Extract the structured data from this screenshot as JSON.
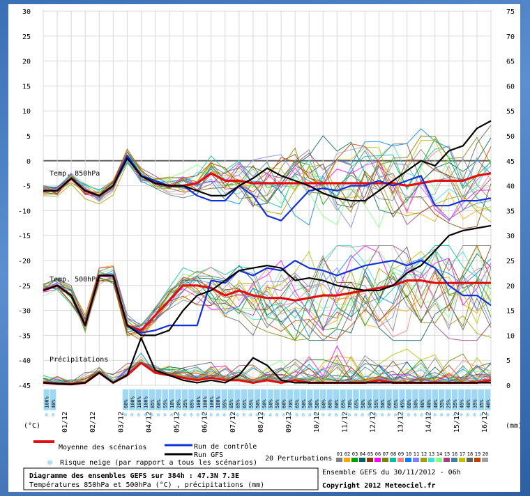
{
  "chart_data": {
    "type": "line",
    "title": "Diagramme des ensembles GEFS sur 384h : 47.3N 7.3E",
    "subtitle": "Températures 850hPa et 500hPa (°C) , précipitations (mm)",
    "run_label": "Ensemble GEFS du 30/11/2012 - 06h",
    "copyright": "Copyright 2012 Meteociel.fr",
    "ylabel_left": "(°C)",
    "ylabel_right": "(mm)",
    "ylim_left": [
      -45,
      30
    ],
    "ylim_right": [
      0,
      75
    ],
    "y_ticks_left": [
      30,
      25,
      20,
      15,
      10,
      5,
      0,
      -5,
      -10,
      -15,
      -20,
      -25,
      -30,
      -35,
      -40,
      -45
    ],
    "y_ticks_right": [
      75,
      70,
      65,
      60,
      55,
      50,
      45,
      40,
      35,
      30,
      25,
      20,
      15,
      10,
      5,
      0
    ],
    "x_range_hours": [
      0,
      384
    ],
    "x_tick_labels": [
      "01/12",
      "02/12",
      "03/12",
      "04/12",
      "05/12",
      "06/12",
      "07/12",
      "08/12",
      "09/12",
      "10/12",
      "11/12",
      "12/12",
      "13/12",
      "14/12",
      "15/12",
      "16/12"
    ],
    "x_tick_hours": [
      18,
      42,
      66,
      90,
      114,
      138,
      162,
      186,
      210,
      234,
      258,
      282,
      306,
      330,
      354,
      378
    ],
    "grid": true,
    "panel_labels": [
      "Temp. 850hPa",
      "Temp. 500hPa",
      "Précipitations"
    ],
    "snow_risk": [
      "100%",
      "40%",
      "",
      "",
      "",
      "",
      "",
      "",
      "",
      "",
      "",
      "",
      "60%",
      "100%",
      "100%",
      "100%",
      "85%",
      "60%",
      "55%",
      "10%",
      "20%",
      "35%",
      "85%",
      "100%",
      "100%",
      "100%",
      "100%",
      "95%",
      "85%",
      "85%",
      "65%",
      "55%",
      "50%",
      "50%",
      "50%",
      "50%",
      "60%",
      "70%",
      "65%",
      "50%",
      "50%",
      "50%",
      "60%",
      "60%",
      "60%",
      "65%",
      "70%",
      "65%",
      "50%",
      "50%",
      "55%",
      "50%",
      "60%",
      "65%",
      "45%",
      "60%",
      "50%",
      "40%",
      "40%",
      "40%",
      "35%",
      "25%",
      "35%",
      "45%",
      "40%",
      "35%",
      "35%",
      "40%"
    ],
    "legend": {
      "mean": "Moyenne des scénarios",
      "control": "Run de contrôle",
      "gfs": "Run GFS",
      "snow": "Risque neige (par rapport a tous les scénarios)",
      "perturbations_label": "20 Perturbations",
      "perturbations": [
        "01",
        "02",
        "03",
        "04",
        "05",
        "06",
        "07",
        "08",
        "09",
        "10",
        "11",
        "12",
        "13",
        "14",
        "15",
        "16",
        "17",
        "18",
        "19",
        "20"
      ]
    },
    "colors": {
      "mean": "#e01010",
      "control": "#1030d8",
      "gfs": "#000000",
      "snow": "#9fd8f4",
      "perturbations": [
        "#808080",
        "#ffa500",
        "#00a000",
        "#006060",
        "#804000",
        "#ff00ff",
        "#808000",
        "#00c0a0",
        "#ff8080",
        "#0080ff",
        "#8080ff",
        "#a0a000",
        "#40e0d0",
        "#80ff80",
        "#a04080",
        "#4080a0",
        "#c0c000",
        "#606060",
        "#c04000",
        "#a0a0a0"
      ]
    },
    "series": [
      {
        "name": "Temp. 850hPa - Moyenne des scénarios",
        "x": [
          0,
          12,
          24,
          36,
          48,
          60,
          72,
          84,
          96,
          108,
          120,
          132,
          144,
          156,
          168,
          180,
          192,
          204,
          216,
          228,
          240,
          252,
          264,
          276,
          288,
          300,
          312,
          324,
          336,
          348,
          360,
          372,
          384
        ],
        "values": [
          -6,
          -6,
          -3.5,
          -6,
          -7,
          -5,
          1,
          -3,
          -4.5,
          -5,
          -5,
          -4.5,
          -2.5,
          -4,
          -4,
          -4.5,
          -4.5,
          -4.5,
          -4.5,
          -4.5,
          -4.5,
          -4.5,
          -4.5,
          -4.5,
          -4.5,
          -4.5,
          -5,
          -4.5,
          -4,
          -4,
          -4,
          -3,
          -2.5
        ]
      },
      {
        "name": "Temp. 850hPa - Run de contrôle",
        "x": [
          0,
          12,
          24,
          36,
          48,
          60,
          72,
          84,
          96,
          108,
          120,
          132,
          144,
          156,
          168,
          180,
          192,
          204,
          216,
          228,
          240,
          252,
          264,
          276,
          288,
          300,
          312,
          324,
          336,
          348,
          360,
          372,
          384
        ],
        "values": [
          -6,
          -6,
          -3.5,
          -6,
          -7,
          -5,
          1,
          -3,
          -4,
          -5,
          -5,
          -7,
          -8,
          -8,
          -5,
          -7,
          -11,
          -12,
          -9,
          -6,
          -5.5,
          -6,
          -5,
          -5,
          -4,
          -5,
          -4,
          -3,
          -9,
          -9,
          -8,
          -8,
          -7.5
        ]
      },
      {
        "name": "Temp. 850hPa - Run GFS",
        "x": [
          0,
          12,
          24,
          36,
          48,
          60,
          72,
          84,
          96,
          108,
          120,
          132,
          144,
          156,
          168,
          180,
          192,
          204,
          216,
          228,
          240,
          252,
          264,
          276,
          288,
          300,
          312,
          324,
          336,
          348,
          360,
          372,
          384
        ],
        "values": [
          -6,
          -6,
          -3.5,
          -6,
          -7,
          -5,
          0.5,
          -3,
          -4.5,
          -5,
          -5,
          -6,
          -7,
          -7,
          -5,
          -3.5,
          -1.5,
          -3,
          -4,
          -5,
          -6.5,
          -7.5,
          -8,
          -8,
          -6,
          -4,
          -2,
          0,
          -1,
          2,
          3,
          6.5,
          8
        ]
      },
      {
        "name": "Temp. 500hPa - Moyenne des scénarios",
        "x": [
          0,
          12,
          24,
          36,
          48,
          60,
          72,
          84,
          96,
          108,
          120,
          132,
          144,
          156,
          168,
          180,
          192,
          204,
          216,
          228,
          240,
          252,
          264,
          276,
          288,
          300,
          312,
          324,
          336,
          348,
          360,
          372,
          384
        ],
        "values": [
          -26,
          -25,
          -27,
          -33,
          -23,
          -23,
          -33,
          -34,
          -31,
          -28,
          -25,
          -25,
          -25.5,
          -27,
          -26,
          -27,
          -27.5,
          -27.5,
          -28,
          -27.5,
          -27,
          -27,
          -26.5,
          -26,
          -25.5,
          -25,
          -24,
          -24,
          -24.5,
          -24.5,
          -24.5,
          -24.5,
          -24.5
        ]
      },
      {
        "name": "Temp. 500hPa - Run de contrôle",
        "x": [
          0,
          12,
          24,
          36,
          48,
          60,
          72,
          84,
          96,
          108,
          120,
          132,
          144,
          156,
          168,
          180,
          192,
          204,
          216,
          228,
          240,
          252,
          264,
          276,
          288,
          300,
          312,
          324,
          336,
          348,
          360,
          372,
          384
        ],
        "values": [
          -26,
          -25,
          -27,
          -33,
          -23,
          -23,
          -33,
          -34.5,
          -34,
          -33,
          -33,
          -33,
          -24,
          -24.5,
          -22,
          -23,
          -21.5,
          -22,
          -20,
          -21.5,
          -22,
          -23,
          -22,
          -21,
          -20.5,
          -20,
          -21,
          -20,
          -21.5,
          -25,
          -27,
          -27,
          -29
        ]
      },
      {
        "name": "Temp. 500hPa - Run GFS",
        "x": [
          0,
          12,
          24,
          36,
          48,
          60,
          72,
          84,
          96,
          108,
          120,
          132,
          144,
          156,
          168,
          180,
          192,
          204,
          216,
          228,
          240,
          252,
          264,
          276,
          288,
          300,
          312,
          324,
          336,
          348,
          360,
          372,
          384
        ],
        "values": [
          -26,
          -25,
          -27,
          -33,
          -23,
          -23,
          -33,
          -35,
          -35,
          -34,
          -30,
          -27,
          -26,
          -24,
          -22,
          -21.5,
          -21,
          -21.5,
          -24,
          -23.5,
          -24,
          -25,
          -25.5,
          -26,
          -26,
          -25,
          -22.5,
          -21,
          -18,
          -15,
          -14,
          -13.5,
          -13
        ]
      },
      {
        "name": "Précipitations - Moyenne des scénarios",
        "x": [
          0,
          12,
          24,
          36,
          48,
          60,
          72,
          84,
          96,
          108,
          120,
          132,
          144,
          156,
          168,
          180,
          192,
          204,
          216,
          228,
          240,
          252,
          264,
          276,
          288,
          300,
          312,
          324,
          336,
          348,
          360,
          372,
          384
        ],
        "values": [
          0.5,
          0.3,
          0.2,
          0.5,
          2.5,
          0.5,
          2,
          4.5,
          2.5,
          2,
          1.5,
          1,
          1.5,
          1,
          1,
          0.5,
          1,
          0.5,
          1,
          0.5,
          0.5,
          0.5,
          0.5,
          0.5,
          1,
          0.5,
          0.5,
          0.5,
          0.5,
          0.5,
          0.5,
          0.5,
          1
        ]
      },
      {
        "name": "Précipitations - Run GFS",
        "x": [
          0,
          12,
          24,
          36,
          48,
          60,
          72,
          84,
          96,
          108,
          120,
          132,
          144,
          156,
          168,
          180,
          192,
          204,
          216,
          228,
          240,
          252,
          264,
          276,
          288,
          300,
          312,
          324,
          336,
          348,
          360,
          372,
          384
        ],
        "values": [
          0.5,
          0.3,
          0.2,
          0.5,
          2.5,
          0.5,
          2,
          9.5,
          3,
          2,
          1,
          0.5,
          1,
          0.5,
          2,
          5.5,
          4,
          1,
          0.5,
          0.5,
          0.5,
          0.5,
          0.5,
          0.5,
          0.5,
          0.5,
          0.5,
          0.5,
          0.5,
          0.5,
          0.5,
          0.5,
          0.5
        ]
      }
    ]
  }
}
